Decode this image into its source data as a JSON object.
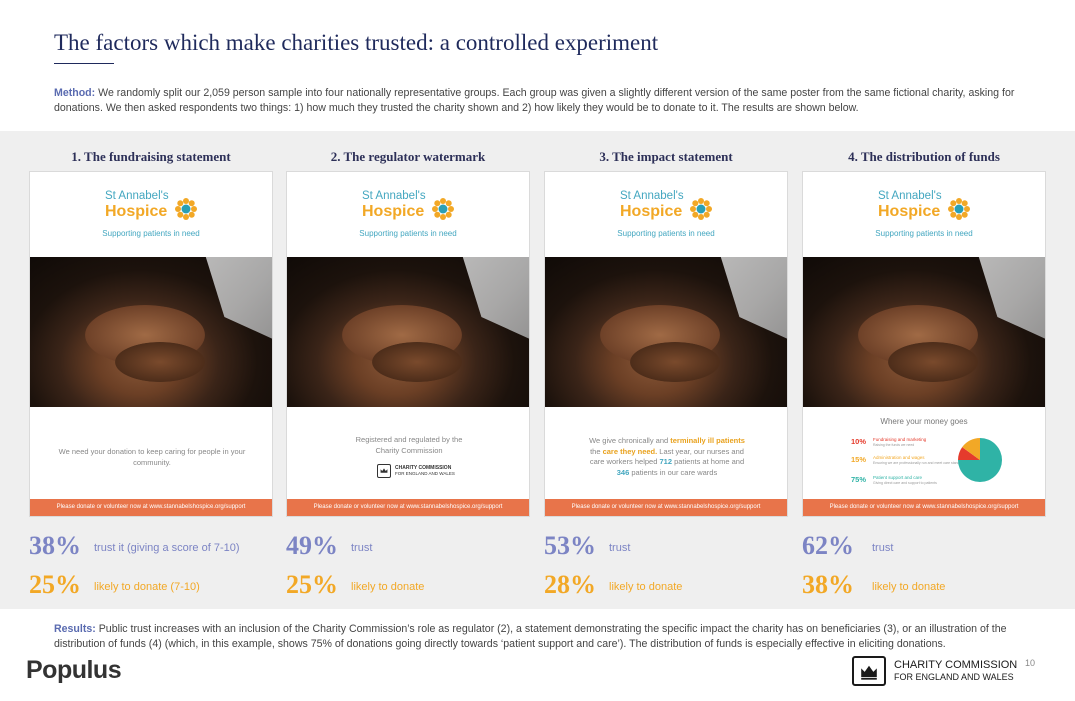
{
  "title": "The factors which make charities trusted: a controlled experiment",
  "method": {
    "lead": "Method:",
    "text": " We randomly split our 2,059 person sample into four nationally representative groups. Each group was given a slightly different version of the same poster from the same fictional charity, asking for donations. We then asked respondents two things: 1) how much they trusted the charity shown and 2) how likely they would be to donate to it. The results are shown below."
  },
  "poster_common": {
    "name_line1": "St Annabel's",
    "name_line2": "Hospice",
    "tagline": "Supporting patients in need",
    "footer": "Please donate or volunteer now at www.stannabelshospice.org/support"
  },
  "columns": [
    {
      "heading": "1.  The fundraising statement",
      "body": "We need your donation to keep caring for people in your community.",
      "trust_pct": "38%",
      "trust_label": "trust it (giving a score of 7-10)",
      "donate_pct": "25%",
      "donate_label": "likely to donate (7-10)"
    },
    {
      "heading": "2. The regulator watermark",
      "body": "Registered and regulated by the Charity Commission",
      "cc_line1": "CHARITY COMMISSION",
      "cc_line2": "FOR ENGLAND AND WALES",
      "trust_pct": "49%",
      "trust_label": "trust",
      "donate_pct": "25%",
      "donate_label": "likely to donate"
    },
    {
      "heading": "3. The impact statement",
      "body_parts": {
        "a": "We give chronically and ",
        "b": "terminally ill patients",
        "c": " the ",
        "d": "care they need.",
        "e": " Last year, our nurses and care workers helped ",
        "f": "712",
        "g": " patients at home and ",
        "h": "346",
        "i": " patients in our care wards"
      },
      "trust_pct": "53%",
      "trust_label": "trust",
      "donate_pct": "28%",
      "donate_label": "likely to donate"
    },
    {
      "heading": "4. The distribution of funds",
      "fund_heading": "Where your money goes",
      "funds": [
        {
          "pct": "10%",
          "label": "Fundraising and marketing",
          "sub": "Raising the funds we need",
          "color": "#e53b2c",
          "value": 10
        },
        {
          "pct": "15%",
          "label": "Administration and wages",
          "sub": "Ensuring we are professionally run and meet care standards",
          "color": "#f2a826",
          "value": 15
        },
        {
          "pct": "75%",
          "label": "Patient support and care",
          "sub": "Giving direct care and support to patients",
          "color": "#2fb3a6",
          "value": 75
        }
      ],
      "trust_pct": "62%",
      "trust_label": "trust",
      "donate_pct": "38%",
      "donate_label": "likely to donate"
    }
  ],
  "results": {
    "lead": "Results:",
    "text": " Public trust increases with an inclusion of the Charity Commission’s role as regulator (2), a statement demonstrating the specific impact the charity has on beneficiaries (3), or an illustration of the distribution of funds (4) (which, in this example, shows 75% of donations going directly towards ‘patient support and care’). The distribution of funds is especially effective in eliciting donations."
  },
  "brand": "Populus",
  "cc_logo": {
    "line1": "CHARITY COMMISSION",
    "line2": "FOR ENGLAND AND WALES"
  },
  "page_number": "10",
  "colors": {
    "trust": "#7c84c4",
    "donate": "#f2a826",
    "footer_bar": "#e8744a",
    "title": "#1f2a5c"
  }
}
